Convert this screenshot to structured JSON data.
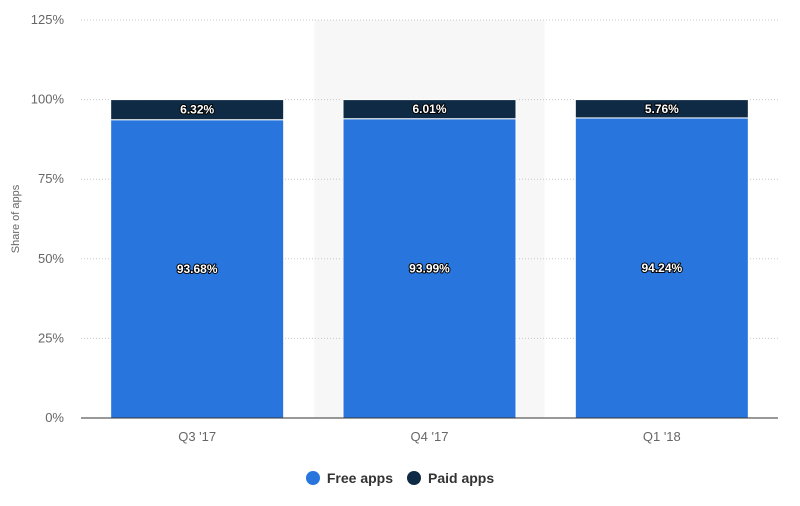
{
  "chart_data": {
    "type": "bar",
    "stacked": true,
    "categories": [
      "Q3 '17",
      "Q4 '17",
      "Q1 '18"
    ],
    "series": [
      {
        "name": "Free apps",
        "values": [
          93.68,
          93.99,
          94.24
        ],
        "labels": [
          "93.68%",
          "93.99%",
          "94.24%"
        ],
        "color": "#2876dd"
      },
      {
        "name": "Paid apps",
        "values": [
          6.32,
          6.01,
          5.76
        ],
        "labels": [
          "6.32%",
          "6.01%",
          "5.76%"
        ],
        "color": "#0f2a44"
      }
    ],
    "xlabel": "",
    "ylabel": "Share of apps",
    "ylim": [
      0,
      125
    ],
    "yticks": [
      {
        "value": 0,
        "label": "0%"
      },
      {
        "value": 25,
        "label": "25%"
      },
      {
        "value": 50,
        "label": "50%"
      },
      {
        "value": 75,
        "label": "75%"
      },
      {
        "value": 100,
        "label": "100%"
      },
      {
        "value": 125,
        "label": "125%"
      }
    ],
    "grid": true,
    "legend_position": "bottom-center",
    "highlighted_category": "Q4 '17"
  }
}
